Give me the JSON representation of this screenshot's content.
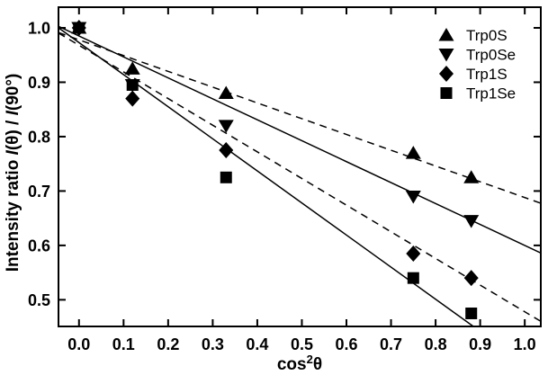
{
  "figure": {
    "background": "#ffffff",
    "ink": "#000000"
  },
  "chart_data": {
    "type": "scatter",
    "title": "",
    "xlabel": "cos²θ",
    "ylabel": "Intensity ratio I(θ) / I(90°)",
    "xlabel_parts": [
      {
        "text": "cos",
        "sup": false
      },
      {
        "text": "2",
        "sup": true
      },
      {
        "text": "θ",
        "sup": false
      }
    ],
    "ylabel_parts": [
      {
        "text": "Intensity ratio ",
        "italic": false
      },
      {
        "text": "I",
        "italic": true
      },
      {
        "text": "(θ) / ",
        "italic": false
      },
      {
        "text": "I",
        "italic": true
      },
      {
        "text": "(90°)",
        "italic": false
      }
    ],
    "xlim": [
      -0.046,
      1.036
    ],
    "ylim": [
      0.451,
      1.038
    ],
    "x_ticks": [
      {
        "v": 0.0,
        "label": "0.0"
      },
      {
        "v": 0.1,
        "label": "0.1"
      },
      {
        "v": 0.2,
        "label": "0.2"
      },
      {
        "v": 0.3,
        "label": "0.3"
      },
      {
        "v": 0.4,
        "label": "0.4"
      },
      {
        "v": 0.5,
        "label": "0.5"
      },
      {
        "v": 0.6,
        "label": "0.6"
      },
      {
        "v": 0.7,
        "label": "0.7"
      },
      {
        "v": 0.8,
        "label": "0.8"
      },
      {
        "v": 0.9,
        "label": "0.9"
      },
      {
        "v": 1.0,
        "label": "1.0"
      }
    ],
    "y_ticks": [
      {
        "v": 0.5,
        "label": "0.5"
      },
      {
        "v": 0.6,
        "label": "0.6"
      },
      {
        "v": 0.7,
        "label": "0.7"
      },
      {
        "v": 0.8,
        "label": "0.8"
      },
      {
        "v": 0.9,
        "label": "0.9"
      },
      {
        "v": 1.0,
        "label": "1.0"
      }
    ],
    "grid": false,
    "legend_position": "top-right",
    "series": [
      {
        "name": "Trp0S",
        "marker": "triangle-up",
        "line_style": "dashed",
        "points": [
          [
            0.0,
            1.0
          ],
          [
            0.12,
            0.925
          ],
          [
            0.33,
            0.88
          ],
          [
            0.75,
            0.77
          ],
          [
            0.88,
            0.725
          ]
        ],
        "fit": {
          "intercept": 0.978,
          "slope": -0.29
        }
      },
      {
        "name": "Trp0Se",
        "marker": "triangle-down",
        "line_style": "solid",
        "points": [
          [
            0.0,
            1.0
          ],
          [
            0.12,
            0.895
          ],
          [
            0.33,
            0.82
          ],
          [
            0.75,
            0.69
          ],
          [
            0.88,
            0.645
          ]
        ],
        "fit": {
          "intercept": 0.985,
          "slope": -0.385
        }
      },
      {
        "name": "Trp1S",
        "marker": "diamond",
        "line_style": "dashed",
        "points": [
          [
            0.0,
            1.0
          ],
          [
            0.12,
            0.87
          ],
          [
            0.33,
            0.775
          ],
          [
            0.75,
            0.585
          ],
          [
            0.88,
            0.54
          ]
        ],
        "fit": {
          "intercept": 0.968,
          "slope": -0.49
        }
      },
      {
        "name": "Trp1Se",
        "marker": "square",
        "line_style": "solid",
        "points": [
          [
            0.0,
            1.0
          ],
          [
            0.12,
            0.895
          ],
          [
            0.33,
            0.725
          ],
          [
            0.75,
            0.54
          ],
          [
            0.88,
            0.475
          ]
        ],
        "fit": {
          "intercept": 0.973,
          "slope": -0.59
        }
      }
    ]
  }
}
